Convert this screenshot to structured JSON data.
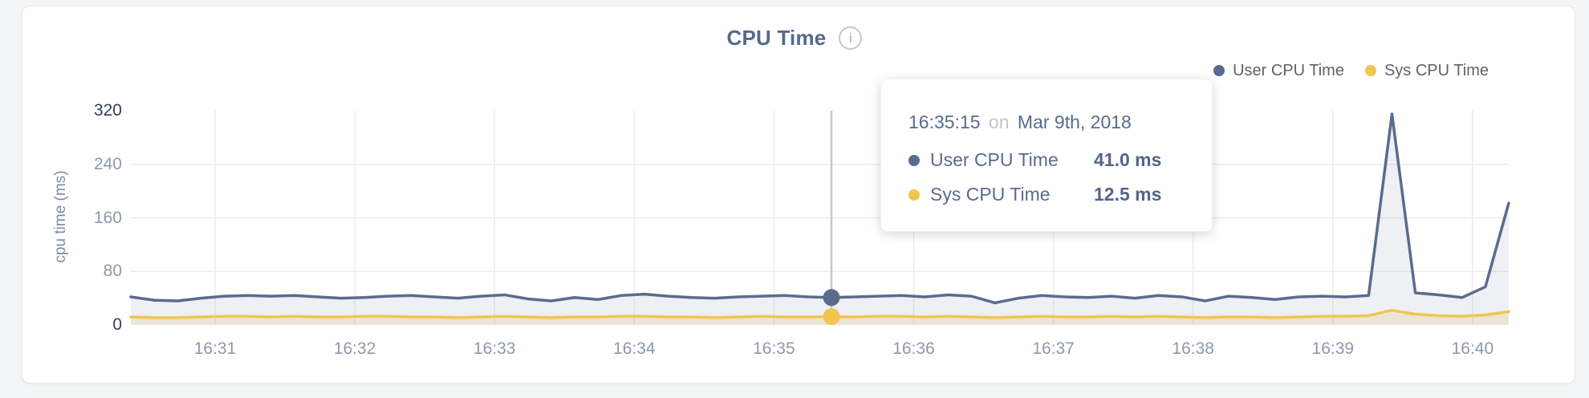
{
  "page": {
    "background": "#f4f5f6"
  },
  "header": {
    "title": "CPU Time",
    "info_icon_glyph": "i"
  },
  "legend": {
    "items": [
      {
        "label": "User CPU Time",
        "color": "#5b6b8f"
      },
      {
        "label": "Sys CPU Time",
        "color": "#f0c64f"
      }
    ]
  },
  "tooltip": {
    "time": "16:35:15",
    "on_word": "on",
    "date": "Mar 9th, 2018",
    "rows": [
      {
        "label": "User CPU Time",
        "value": "41.0 ms",
        "color": "#5b6b8f"
      },
      {
        "label": "Sys CPU Time",
        "value": "12.5 ms",
        "color": "#f0c64f"
      }
    ]
  },
  "chart_data": {
    "type": "area",
    "title": "CPU Time",
    "ylabel": "cpu time (ms)",
    "xlabel": "",
    "ylim": [
      0,
      320
    ],
    "y_ticks": [
      320,
      240,
      160,
      80,
      0
    ],
    "x_ticks": [
      "16:31",
      "16:32",
      "16:33",
      "16:34",
      "16:35",
      "16:36",
      "16:37",
      "16:38",
      "16:39",
      "16:40"
    ],
    "x_start": "16:30:15",
    "x_interval_seconds": 10,
    "grid": true,
    "legend_position": "top-right",
    "cursor_line_color": "#c8c8c8",
    "series": [
      {
        "name": "User CPU Time",
        "color": "#5b6b8f",
        "fill": "rgba(91,107,143,0.10)",
        "unit": "ms",
        "values": [
          42,
          37,
          36,
          40,
          43,
          44,
          43,
          44,
          42,
          40,
          41,
          43,
          44,
          42,
          40,
          43,
          45,
          39,
          36,
          41,
          38,
          44,
          46,
          43,
          41,
          40,
          42,
          43,
          44,
          42,
          41,
          42,
          43,
          44,
          42,
          45,
          43,
          33,
          40,
          44,
          42,
          41,
          43,
          40,
          44,
          42,
          36,
          43,
          41,
          38,
          42,
          43,
          42,
          44,
          315,
          48,
          45,
          41,
          57,
          182
        ]
      },
      {
        "name": "Sys CPU Time",
        "color": "#f0c64f",
        "fill": "rgba(224,185,80,0.18)",
        "unit": "ms",
        "values": [
          12,
          11,
          11,
          12,
          13,
          13,
          12,
          13,
          12,
          12,
          13,
          13,
          12,
          12,
          11,
          12,
          13,
          12,
          11,
          12,
          12,
          13,
          13,
          12,
          12,
          11,
          12,
          13,
          12,
          12,
          12.5,
          12,
          13,
          13,
          12,
          13,
          12,
          11,
          12,
          13,
          12,
          12,
          13,
          12,
          13,
          12,
          11,
          12,
          12,
          11,
          12,
          13,
          13,
          14,
          22,
          16,
          14,
          13,
          15,
          20
        ]
      }
    ],
    "selected": {
      "index": 30,
      "time": "16:35:15",
      "values": [
        41.0,
        12.5
      ]
    }
  }
}
